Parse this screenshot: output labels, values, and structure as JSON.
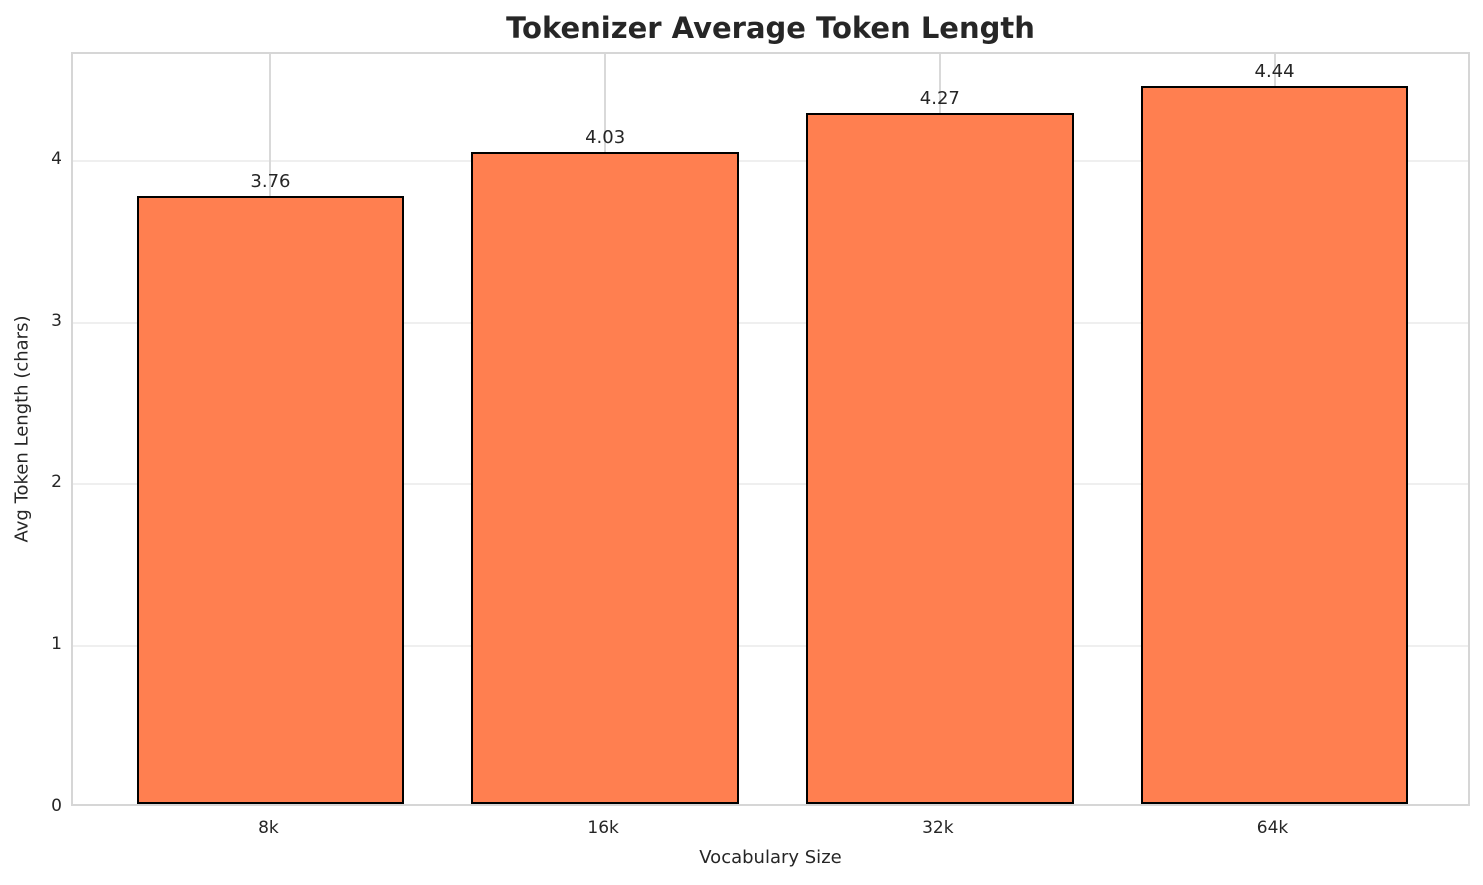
{
  "chart_data": {
    "type": "bar",
    "title": "Tokenizer Average Token Length",
    "xlabel": "Vocabulary Size",
    "ylabel": "Avg Token Length (chars)",
    "categories": [
      "8k",
      "16k",
      "32k",
      "64k"
    ],
    "values": [
      3.76,
      4.03,
      4.27,
      4.44
    ],
    "value_labels": [
      "3.76",
      "4.03",
      "4.27",
      "4.44"
    ],
    "yticks": [
      0,
      1,
      2,
      3,
      4
    ],
    "ytick_labels": [
      "0",
      "1",
      "2",
      "3",
      "4"
    ],
    "ylim": [
      0,
      4.66
    ],
    "grid": true,
    "legend_position": "none",
    "bar_color": "#FF7F50",
    "bar_edge_color": "#000000",
    "grid_color_horizontal": "#efefef",
    "grid_color_vertical": "#d9d9d9",
    "spine_color": "#d6d6d6",
    "text_color": "#262626",
    "background_color": "#ffffff"
  }
}
